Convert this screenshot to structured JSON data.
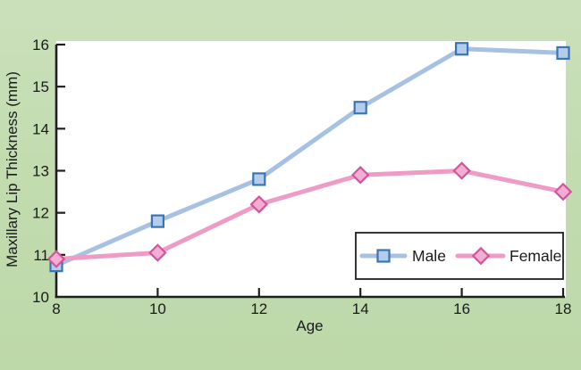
{
  "figure": {
    "background_color": "#c2dcaf",
    "plot_background": "#ffffff",
    "axis_color": "#1f1f1f",
    "legend_border_color": "#1f1f1f"
  },
  "chart_data": {
    "type": "line",
    "title": "",
    "xlabel": "Age",
    "ylabel": "Maxillary Lip Thickness (mm)",
    "x": [
      8,
      10,
      12,
      14,
      16,
      18
    ],
    "x_ticks": [
      "8",
      "10",
      "12",
      "14",
      "16",
      "18"
    ],
    "y_ticks": [
      "10",
      "11",
      "12",
      "13",
      "14",
      "15",
      "16"
    ],
    "xlim": [
      8,
      18
    ],
    "ylim": [
      10,
      16
    ],
    "grid": false,
    "legend_position": "inside-lower-right",
    "series": [
      {
        "name": "Male",
        "marker": "square",
        "line_color": "#a6c1e2",
        "marker_fill": "#b4cdea",
        "marker_stroke": "#3a74b4",
        "values": [
          10.75,
          11.8,
          12.8,
          14.5,
          15.9,
          15.8
        ]
      },
      {
        "name": "Female",
        "marker": "diamond",
        "line_color": "#ee9bc5",
        "marker_fill": "#f2aed2",
        "marker_stroke": "#d2549c",
        "values": [
          10.9,
          11.05,
          12.2,
          12.9,
          13.0,
          12.5
        ]
      }
    ]
  }
}
